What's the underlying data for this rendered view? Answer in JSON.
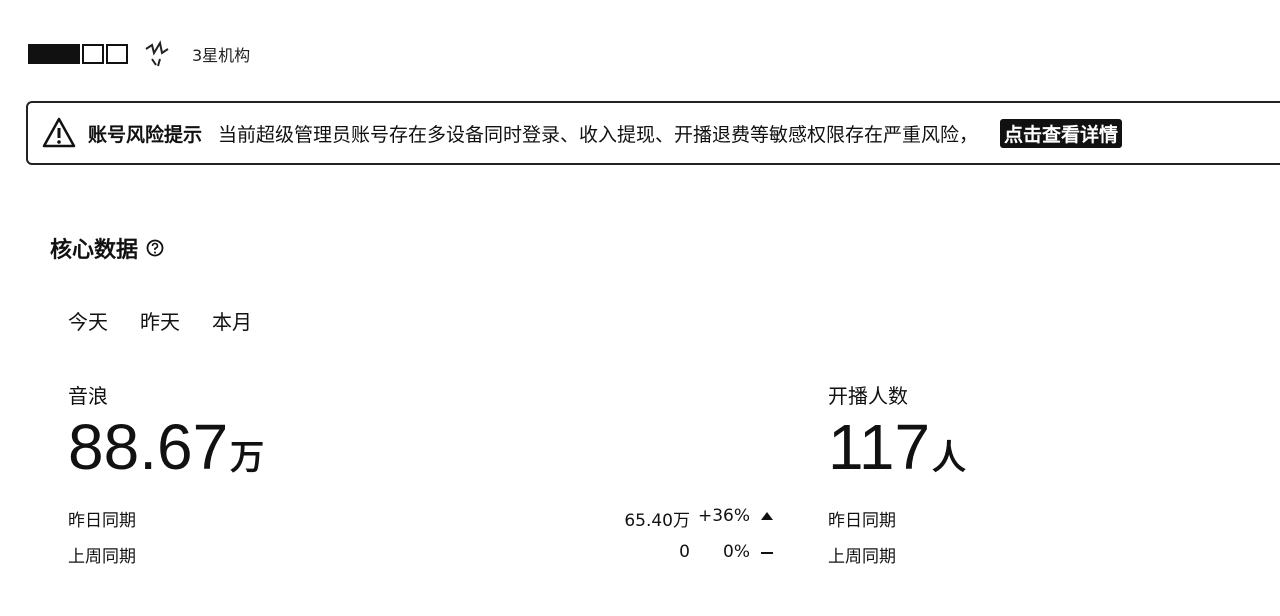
{
  "header": {
    "org_level": "3星机构"
  },
  "alert": {
    "title": "账号风险提示",
    "message": "当前超级管理员账号存在多设备同时登录、收入提现、开播退费等敏感权限存在严重风险，",
    "link": "点击查看详情"
  },
  "core": {
    "title": "核心数据",
    "tabs": [
      "今天",
      "昨天",
      "本月"
    ]
  },
  "metrics": {
    "yinlang": {
      "label": "音浪",
      "value": "88.67",
      "unit": "万",
      "yesterday_label": "昨日同期",
      "yesterday_value": "65.40万",
      "yesterday_pct": "+36%",
      "lastweek_label": "上周同期",
      "lastweek_value": "0",
      "lastweek_pct": "0%"
    },
    "broadcasters": {
      "label": "开播人数",
      "value": "117",
      "unit": "人",
      "yesterday_label": "昨日同期",
      "lastweek_label": "上周同期"
    }
  }
}
